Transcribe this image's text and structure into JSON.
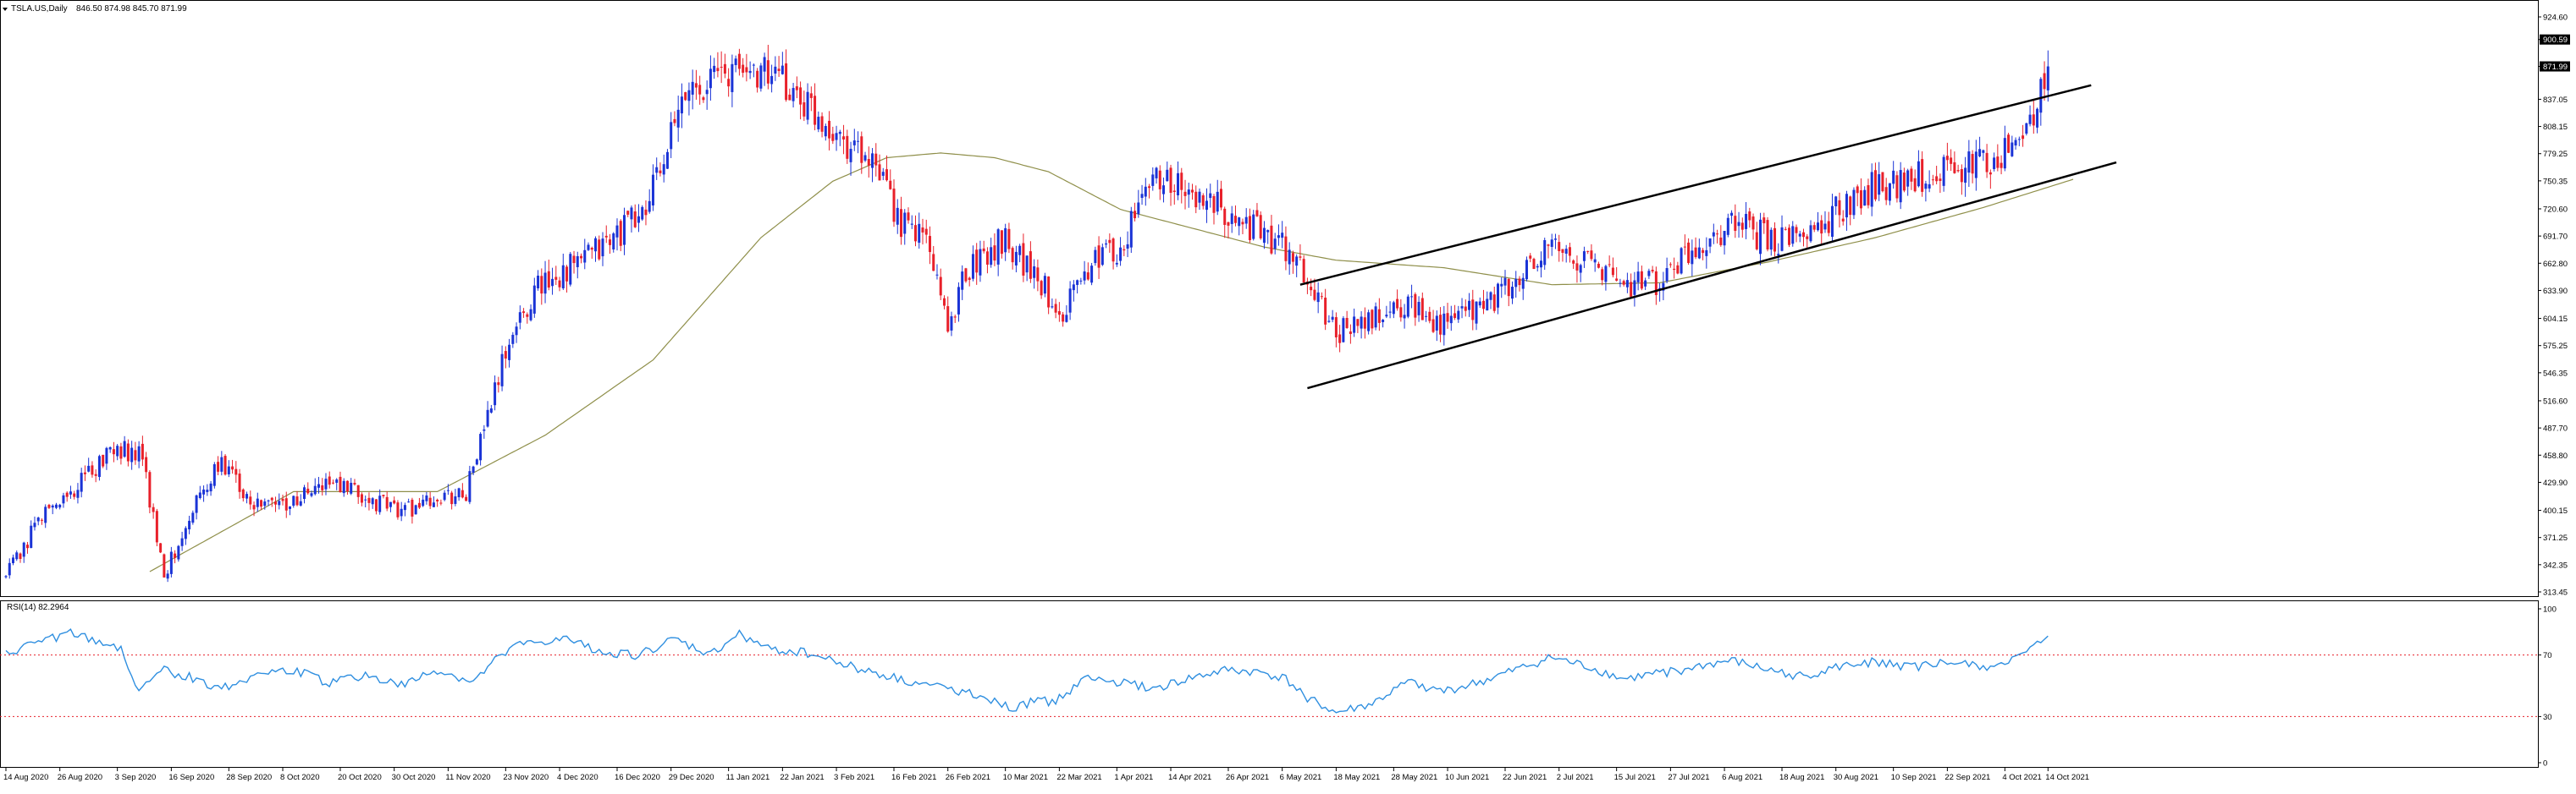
{
  "header": {
    "symbol_label": "TSLA.US,Daily",
    "ohlc_label": "846.50 874.98 845.70 871.99"
  },
  "colors": {
    "up": "#1a33d6",
    "down": "#e8202a",
    "ma": "#8f8f4a",
    "channel": "#000000",
    "rsi": "#2f8fe0",
    "level": "#e8202a",
    "grid": "#000000",
    "price_box_bg": "#000000",
    "price_box_text": "#ffffff"
  },
  "icons": {
    "collapse": "triangle-down-icon"
  },
  "chart_data": [
    {
      "type": "candlestick",
      "title": "TSLA.US,Daily",
      "ohlc_text": "846.50 874.98 845.70 871.99",
      "y_ticks": [
        "924.60",
        "900.59",
        "871.99",
        "837.05",
        "808.15",
        "779.25",
        "750.35",
        "720.60",
        "691.70",
        "662.80",
        "633.90",
        "604.15",
        "575.25",
        "546.35",
        "516.60",
        "487.70",
        "458.80",
        "429.90",
        "400.15",
        "371.25",
        "342.35",
        "313.45"
      ],
      "current_price": "871.99",
      "highlight_level": "900.59",
      "ylim": [
        313.45,
        924.6
      ],
      "x_ticks": [
        "14 Aug 2020",
        "26 Aug 2020",
        "3 Sep 2020",
        "16 Sep 2020",
        "28 Sep 2020",
        "8 Oct 2020",
        "20 Oct 2020",
        "30 Oct 2020",
        "11 Nov 2020",
        "23 Nov 2020",
        "4 Dec 2020",
        "16 Dec 2020",
        "29 Dec 2020",
        "11 Jan 2021",
        "22 Jan 2021",
        "3 Feb 2021",
        "16 Feb 2021",
        "26 Feb 2021",
        "10 Mar 2021",
        "22 Mar 2021",
        "1 Apr 2021",
        "14 Apr 2021",
        "26 Apr 2021",
        "6 May 2021",
        "18 May 2021",
        "28 May 2021",
        "10 Jun 2021",
        "22 Jun 2021",
        "2 Jul 2021",
        "15 Jul 2021",
        "27 Jul 2021",
        "6 Aug 2021",
        "18 Aug 2021",
        "30 Aug 2021",
        "10 Sep 2021",
        "22 Sep 2021",
        "4 Oct 2021",
        "14 Oct 2021"
      ],
      "close_anchors": [
        [
          0,
          330
        ],
        [
          10,
          395
        ],
        [
          20,
          425
        ],
        [
          30,
          470
        ],
        [
          38,
          455
        ],
        [
          44,
          330
        ],
        [
          52,
          405
        ],
        [
          60,
          450
        ],
        [
          70,
          405
        ],
        [
          80,
          410
        ],
        [
          90,
          430
        ],
        [
          100,
          412
        ],
        [
          110,
          400
        ],
        [
          120,
          410
        ],
        [
          128,
          420
        ],
        [
          140,
          580
        ],
        [
          148,
          640
        ],
        [
          158,
          660
        ],
        [
          166,
          680
        ],
        [
          178,
          720
        ],
        [
          190,
          850
        ],
        [
          200,
          865
        ],
        [
          210,
          870
        ],
        [
          220,
          840
        ],
        [
          232,
          800
        ],
        [
          240,
          770
        ],
        [
          250,
          700
        ],
        [
          256,
          690
        ],
        [
          262,
          600
        ],
        [
          268,
          660
        ],
        [
          278,
          690
        ],
        [
          288,
          640
        ],
        [
          294,
          610
        ],
        [
          300,
          660
        ],
        [
          310,
          680
        ],
        [
          320,
          760
        ],
        [
          330,
          730
        ],
        [
          340,
          720
        ],
        [
          350,
          690
        ],
        [
          356,
          680
        ],
        [
          362,
          640
        ],
        [
          370,
          590
        ],
        [
          380,
          600
        ],
        [
          390,
          620
        ],
        [
          400,
          595
        ],
        [
          410,
          615
        ],
        [
          420,
          640
        ],
        [
          430,
          680
        ],
        [
          440,
          665
        ],
        [
          450,
          640
        ],
        [
          460,
          645
        ],
        [
          470,
          680
        ],
        [
          480,
          705
        ],
        [
          490,
          690
        ],
        [
          500,
          690
        ],
        [
          510,
          720
        ],
        [
          520,
          745
        ],
        [
          530,
          750
        ],
        [
          540,
          765
        ],
        [
          550,
          770
        ],
        [
          560,
          785
        ],
        [
          566,
          845
        ],
        [
          568,
          872
        ]
      ],
      "ma_anchors": [
        [
          40,
          335
        ],
        [
          80,
          420
        ],
        [
          120,
          420
        ],
        [
          150,
          480
        ],
        [
          180,
          560
        ],
        [
          210,
          690
        ],
        [
          230,
          750
        ],
        [
          245,
          775
        ],
        [
          260,
          780
        ],
        [
          275,
          775
        ],
        [
          290,
          760
        ],
        [
          310,
          720
        ],
        [
          330,
          700
        ],
        [
          350,
          680
        ],
        [
          370,
          666
        ],
        [
          400,
          658
        ],
        [
          430,
          640
        ],
        [
          460,
          642
        ],
        [
          490,
          664
        ],
        [
          520,
          690
        ],
        [
          550,
          722
        ],
        [
          575,
          752
        ]
      ],
      "channel_upper": [
        [
          "6 May 2021",
          640
        ],
        [
          "18 Oct 2021",
          852
        ]
      ],
      "channel_lower": [
        [
          "10 May 2021",
          530
        ],
        [
          "20 Oct 2021",
          770
        ]
      ]
    },
    {
      "type": "line",
      "title": "RSI(14) 82.2964",
      "y_ticks": [
        "100",
        "70",
        "30",
        "0"
      ],
      "levels": [
        70,
        30
      ],
      "ylim": [
        0,
        100
      ],
      "series": [
        {
          "name": "RSI(14)",
          "last": 82.2964,
          "anchors": [
            [
              0,
              70
            ],
            [
              8,
              78
            ],
            [
              18,
              84
            ],
            [
              26,
              78
            ],
            [
              32,
              75
            ],
            [
              36,
              48
            ],
            [
              44,
              60
            ],
            [
              52,
              55
            ],
            [
              60,
              48
            ],
            [
              70,
              58
            ],
            [
              80,
              60
            ],
            [
              90,
              52
            ],
            [
              100,
              57
            ],
            [
              110,
              50
            ],
            [
              120,
              60
            ],
            [
              130,
              52
            ],
            [
              140,
              75
            ],
            [
              148,
              78
            ],
            [
              156,
              80
            ],
            [
              166,
              72
            ],
            [
              176,
              70
            ],
            [
              186,
              80
            ],
            [
              196,
              70
            ],
            [
              204,
              84
            ],
            [
              212,
              74
            ],
            [
              222,
              72
            ],
            [
              232,
              65
            ],
            [
              242,
              58
            ],
            [
              252,
              52
            ],
            [
              262,
              48
            ],
            [
              272,
              44
            ],
            [
              280,
              34
            ],
            [
              286,
              40
            ],
            [
              292,
              40
            ],
            [
              300,
              55
            ],
            [
              310,
              52
            ],
            [
              320,
              48
            ],
            [
              330,
              55
            ],
            [
              340,
              60
            ],
            [
              350,
              58
            ],
            [
              356,
              54
            ],
            [
              362,
              42
            ],
            [
              370,
              32
            ],
            [
              380,
              38
            ],
            [
              390,
              52
            ],
            [
              400,
              46
            ],
            [
              410,
              52
            ],
            [
              420,
              60
            ],
            [
              430,
              68
            ],
            [
              440,
              62
            ],
            [
              450,
              54
            ],
            [
              460,
              58
            ],
            [
              470,
              62
            ],
            [
              480,
              66
            ],
            [
              490,
              60
            ],
            [
              500,
              56
            ],
            [
              510,
              62
            ],
            [
              520,
              66
            ],
            [
              530,
              62
            ],
            [
              540,
              65
            ],
            [
              550,
              62
            ],
            [
              560,
              68
            ],
            [
              566,
              78
            ],
            [
              568,
              82.3
            ]
          ]
        }
      ]
    }
  ]
}
